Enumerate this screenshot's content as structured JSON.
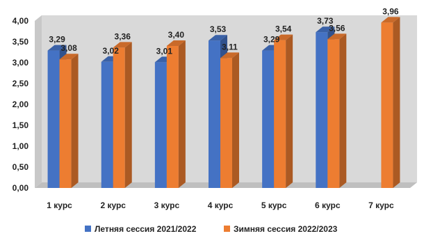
{
  "chart_data": {
    "type": "bar",
    "categories": [
      "1 курс",
      "2 курс",
      "3 курс",
      "4 курс",
      "5 курс",
      "6 курс",
      "7 курс"
    ],
    "series": [
      {
        "name": "Летняя сессия 2021/2022",
        "color": "#4472C4",
        "values": [
          3.29,
          3.02,
          3.01,
          3.53,
          3.29,
          3.73,
          null
        ],
        "labels": [
          "3,29",
          "3,02",
          "3,01",
          "3,53",
          "3,29",
          "3,73",
          ""
        ]
      },
      {
        "name": "Зимняя сессия 2022/2023",
        "color": "#ED7D31",
        "values": [
          3.08,
          3.36,
          3.4,
          3.11,
          3.54,
          3.56,
          3.96
        ],
        "labels": [
          "3,08",
          "3,36",
          "3,40",
          "3,11",
          "3,54",
          "3,56",
          "3,96"
        ]
      }
    ],
    "yticks": [
      "0,00",
      "0,50",
      "1,00",
      "1,50",
      "2,00",
      "2,50",
      "3,00",
      "3,50",
      "4,00"
    ],
    "ylim": [
      0,
      4
    ],
    "grid": false,
    "legend": "bottom"
  }
}
